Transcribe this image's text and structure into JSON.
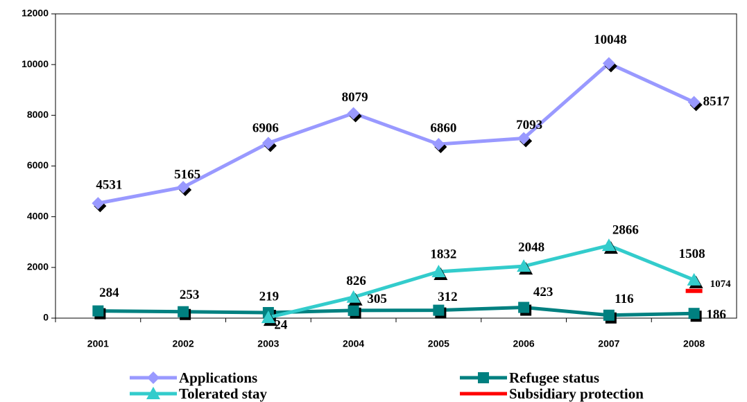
{
  "chart_data": {
    "type": "line",
    "categories": [
      "2001",
      "2002",
      "2003",
      "2004",
      "2005",
      "2006",
      "2007",
      "2008"
    ],
    "series": [
      {
        "name": "Applications",
        "color": "#9999ff",
        "marker": "diamond",
        "values": [
          4531,
          5165,
          6906,
          8079,
          6860,
          7093,
          10048,
          8517
        ]
      },
      {
        "name": "Refugee status",
        "color": "#008080",
        "marker": "square",
        "values": [
          284,
          253,
          219,
          305,
          312,
          423,
          116,
          186
        ]
      },
      {
        "name": "Tolerated stay",
        "color": "#33cccc",
        "marker": "triangle",
        "values": [
          null,
          null,
          24,
          826,
          1832,
          2048,
          2866,
          1508
        ]
      },
      {
        "name": "Subsidiary protection",
        "color": "#ff0000",
        "marker": "dash",
        "values": [
          null,
          null,
          null,
          null,
          null,
          null,
          null,
          1074
        ]
      }
    ],
    "ylim": [
      0,
      12000
    ],
    "yticks": [
      0,
      2000,
      4000,
      6000,
      8000,
      10000,
      12000
    ],
    "grid": false
  }
}
